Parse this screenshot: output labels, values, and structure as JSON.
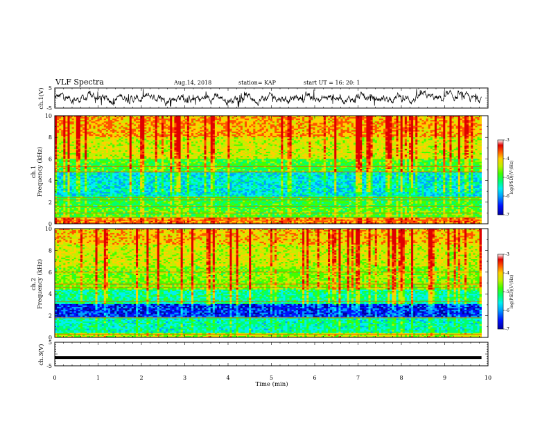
{
  "header": {
    "title": "VLF Spectra",
    "date": "Aug.14, 2018",
    "station": "station= KAP",
    "start_ut": "start  UT  =   16: 20: 1"
  },
  "colors": {
    "spectrogram_ramp": [
      "#0000a0",
      "#0010ff",
      "#00a0ff",
      "#00f0f0",
      "#00ff70",
      "#40ff00",
      "#c0f000",
      "#ffd000",
      "#ff5000",
      "#e00000",
      "#ffffff"
    ]
  },
  "chart_data": [
    {
      "type": "line",
      "name": "ch.1 waveform",
      "ylabel": "ch.1(V)",
      "ylim": [
        -5,
        5
      ],
      "yticks": [
        "5",
        "-5"
      ],
      "x_range_min": [
        0,
        9.85
      ],
      "note_values": "noisy waveform roughly between -4.5 V and +4.5 V, centered near 0 V"
    },
    {
      "type": "heatmap",
      "name": "ch.1 spectrogram",
      "ylabel": "ch.1\nFrequency  (kHz)",
      "ylim": [
        0,
        10
      ],
      "yticks": [
        "0",
        "2",
        "4",
        "6",
        "8",
        "10"
      ],
      "colorbar": {
        "label": "log(PSD)(V²/Hz)",
        "range": [
          -7,
          -3
        ],
        "ticks": [
          "-3",
          "-4",
          "-5",
          "-6",
          "-7"
        ]
      },
      "bands": [
        {
          "from": 0,
          "to": 0.5,
          "level": -3.8
        },
        {
          "from": 0.5,
          "to": 1.5,
          "level": -4.8
        },
        {
          "from": 1.5,
          "to": 2.5,
          "level": -5.0
        },
        {
          "from": 2.5,
          "to": 4.8,
          "level": -5.6
        },
        {
          "from": 4.8,
          "to": 6.0,
          "level": -4.9
        },
        {
          "from": 6.0,
          "to": 8.0,
          "level": -4.3
        },
        {
          "from": 8.0,
          "to": 10.0,
          "level": -3.9
        }
      ],
      "tone_lines_khz": [
        0.3,
        0.6,
        1.0,
        1.6,
        2.2,
        2.4,
        4.8,
        5.3
      ]
    },
    {
      "type": "heatmap",
      "name": "ch.2 spectrogram",
      "ylabel": "ch.2\nFrequency  (kHz)",
      "ylim": [
        0,
        10
      ],
      "yticks": [
        "0",
        "2",
        "4",
        "6",
        "8",
        "10"
      ],
      "colorbar": {
        "label": "log(PSD)(V²/Hz)",
        "range": [
          -7,
          -3
        ],
        "ticks": [
          "-3",
          "-4",
          "-5",
          "-6",
          "-7"
        ]
      },
      "bands": [
        {
          "from": 0,
          "to": 0.4,
          "level": -4.5
        },
        {
          "from": 0.4,
          "to": 1.9,
          "level": -5.4
        },
        {
          "from": 1.9,
          "to": 3.1,
          "level": -6.4
        },
        {
          "from": 3.1,
          "to": 4.4,
          "level": -5.3
        },
        {
          "from": 4.4,
          "to": 6.5,
          "level": -4.6
        },
        {
          "from": 6.5,
          "to": 8.5,
          "level": -4.3
        },
        {
          "from": 8.5,
          "to": 10.0,
          "level": -4.0
        }
      ],
      "tone_lines_khz": [
        0.3,
        1.8,
        3.3,
        4.6,
        4.9,
        6.0
      ]
    },
    {
      "type": "line",
      "name": "ch.3 waveform",
      "ylabel": "ch.3(V)",
      "ylim": [
        -5,
        5
      ],
      "yticks": [
        "5",
        "-5"
      ],
      "x": [
        0,
        9.85
      ],
      "y": [
        -1.5,
        -1.5
      ]
    }
  ],
  "xaxis": {
    "label": "Time  (min)",
    "range": [
      0,
      10
    ],
    "ticks": [
      "0",
      "1",
      "2",
      "3",
      "4",
      "5",
      "6",
      "7",
      "8",
      "9",
      "10"
    ]
  }
}
